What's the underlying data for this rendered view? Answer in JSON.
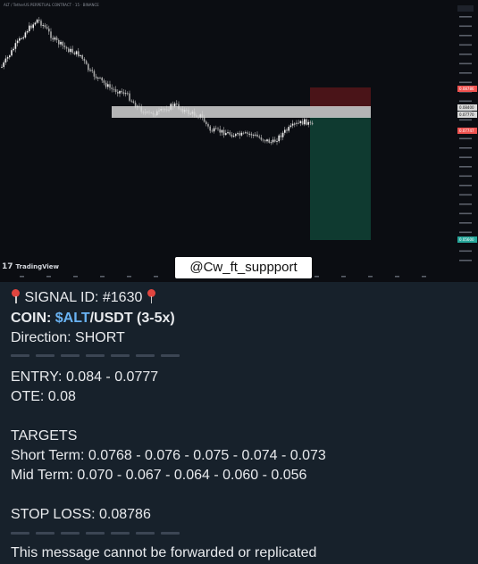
{
  "chart": {
    "header": "ALT / TetherUS PERPETUAL CONTRACT · 15 · BINANCE",
    "tv_logo": "TradingView",
    "watermark": "@Cw_ft_suppport",
    "colors": {
      "background": "#0b0d12",
      "candle_up": "#e9e9e9",
      "candle_down": "#c8c8c8",
      "entry_zone": "#d9d9d9",
      "stop_zone": "#4a1418",
      "target_zone": "#0f3a30",
      "price_up_tag": "#26a69a",
      "price_down_tag": "#ef5350"
    },
    "tags": {
      "stop": "0.08786",
      "entry_high": "0.08400",
      "entry_low": "0.07770",
      "current": "0.07747",
      "target": "0.05600"
    }
  },
  "message": {
    "signal_prefix": "SIGNAL ID: #1630",
    "coin_label": "COIN: ",
    "coin_cashtag": "$ALT",
    "coin_suffix": "/USDT (3-5x)",
    "direction": "Direction: SHORT",
    "entry": "ENTRY: 0.084 - 0.0777",
    "ote": "OTE: 0.08",
    "targets_heading": "TARGETS",
    "short_term": "Short Term: 0.0768 - 0.076 - 0.075 - 0.074 - 0.073",
    "mid_term": "Mid Term: 0.070 - 0.067 - 0.064 - 0.060 - 0.056",
    "stop_loss": "STOP LOSS: 0.08786",
    "footer": "This message cannot be forwarded or replicated"
  }
}
